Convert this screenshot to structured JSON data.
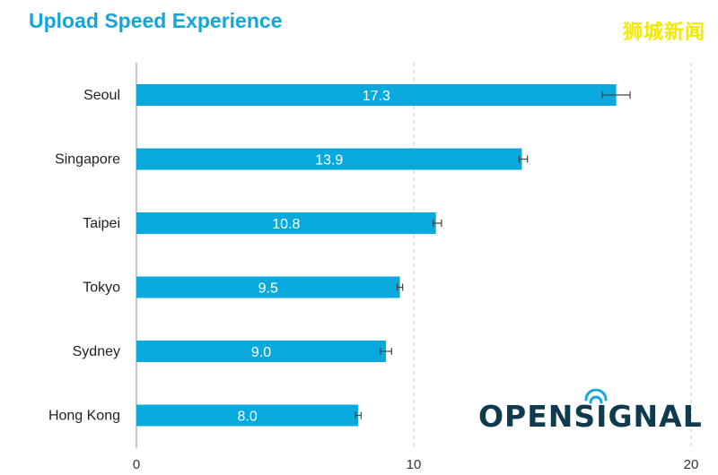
{
  "title": "Upload Speed Experience",
  "watermark": "狮城新闻",
  "logo": {
    "text": "OPENSIGNAL",
    "icon": "signal-icon",
    "color": "#0f3b4f",
    "signal_color": "#13a6d9"
  },
  "chart_data": {
    "type": "bar",
    "orientation": "horizontal",
    "categories": [
      "Seoul",
      "Singapore",
      "Taipei",
      "Tokyo",
      "Sydney",
      "Hong Kong"
    ],
    "values": [
      17.3,
      13.9,
      10.8,
      9.5,
      9.0,
      8.0
    ],
    "value_labels": [
      "17.3",
      "13.9",
      "10.8",
      "9.5",
      "9.0",
      "8.0"
    ],
    "error_bars": [
      {
        "low": 16.8,
        "high": 17.8
      },
      {
        "low": 13.8,
        "high": 14.1
      },
      {
        "low": 10.7,
        "high": 11.0
      },
      {
        "low": 9.4,
        "high": 9.6
      },
      {
        "low": 8.8,
        "high": 9.2
      },
      {
        "low": 7.9,
        "high": 8.1
      }
    ],
    "xlim": [
      0,
      20
    ],
    "xticks": [
      0,
      10,
      20
    ],
    "grid": "vertical-dashed",
    "bar_color": "#09a9de",
    "error_bar_color": "#444444",
    "title": "Upload Speed Experience",
    "xlabel": "",
    "ylabel": ""
  }
}
